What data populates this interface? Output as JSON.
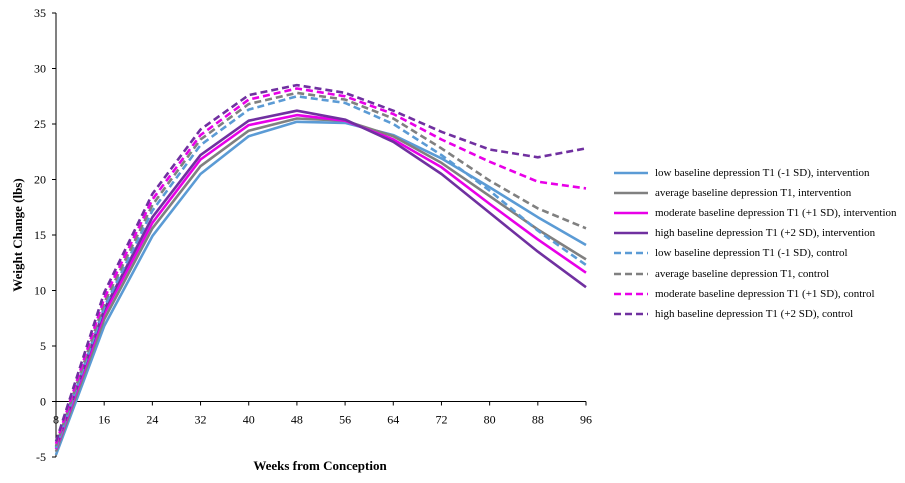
{
  "chart_data": {
    "type": "line",
    "xlabel": "Weeks from Conception",
    "ylabel": "Weight Change (lbs)",
    "x": [
      8,
      16,
      24,
      32,
      40,
      48,
      56,
      64,
      72,
      80,
      88,
      96
    ],
    "x_tick_labels": [
      "8",
      "16",
      "24",
      "32",
      "40",
      "48",
      "56",
      "64",
      "72",
      "80",
      "88",
      "96"
    ],
    "xlim": [
      8,
      96
    ],
    "ylim": [
      -5,
      35
    ],
    "y_ticks": [
      -5,
      0,
      5,
      10,
      15,
      20,
      25,
      30,
      35
    ],
    "y_tick_labels": [
      "-5",
      "0",
      "5",
      "10",
      "15",
      "20",
      "25",
      "30",
      "35"
    ],
    "grid": false,
    "legend_position": "right",
    "series": [
      {
        "name": "low baseline depression T1 (-1 SD), intervention",
        "color": "#5b9bd5",
        "dash": "solid",
        "values": [
          -4.8,
          6.8,
          14.9,
          20.5,
          23.9,
          25.2,
          25.1,
          24.0,
          21.9,
          19.3,
          16.6,
          14.1
        ]
      },
      {
        "name": "average baseline depression T1, intervention",
        "color": "#808080",
        "dash": "solid",
        "values": [
          -4.5,
          7.4,
          15.6,
          21.2,
          24.4,
          25.5,
          25.3,
          23.9,
          21.5,
          18.5,
          15.5,
          12.8
        ]
      },
      {
        "name": "moderate baseline depression T1 (+1 SD), intervention",
        "color": "#e800e8",
        "dash": "solid",
        "values": [
          -4.3,
          7.9,
          16.1,
          21.8,
          24.9,
          25.8,
          25.3,
          23.6,
          21.1,
          17.8,
          14.6,
          11.6
        ]
      },
      {
        "name": "high baseline depression T1 (+2 SD), intervention",
        "color": "#7030a0",
        "dash": "solid",
        "values": [
          -4.1,
          8.3,
          16.6,
          22.2,
          25.3,
          26.2,
          25.4,
          23.4,
          20.5,
          17.0,
          13.5,
          10.3
        ]
      },
      {
        "name": "low baseline depression T1 (-1 SD), control",
        "color": "#5b9bd5",
        "dash": "dashed",
        "values": [
          -4.2,
          8.5,
          17.2,
          23.1,
          26.3,
          27.5,
          26.9,
          25.0,
          22.2,
          19.0,
          15.4,
          12.3
        ]
      },
      {
        "name": "average baseline depression T1, control",
        "color": "#808080",
        "dash": "dashed",
        "values": [
          -4.0,
          8.9,
          17.7,
          23.6,
          26.8,
          27.8,
          27.2,
          25.5,
          22.8,
          19.9,
          17.4,
          15.6
        ]
      },
      {
        "name": "moderate baseline depression T1 (+1 SD), control",
        "color": "#e800e8",
        "dash": "dashed",
        "values": [
          -3.8,
          9.3,
          18.2,
          24.0,
          27.2,
          28.2,
          27.5,
          25.9,
          23.6,
          21.6,
          19.8,
          19.2
        ]
      },
      {
        "name": "high baseline depression T1 (+2 SD), control",
        "color": "#7030a0",
        "dash": "dashed",
        "values": [
          -3.6,
          9.8,
          18.7,
          24.5,
          27.6,
          28.5,
          27.8,
          26.2,
          24.3,
          22.7,
          22.0,
          22.8
        ]
      }
    ]
  }
}
